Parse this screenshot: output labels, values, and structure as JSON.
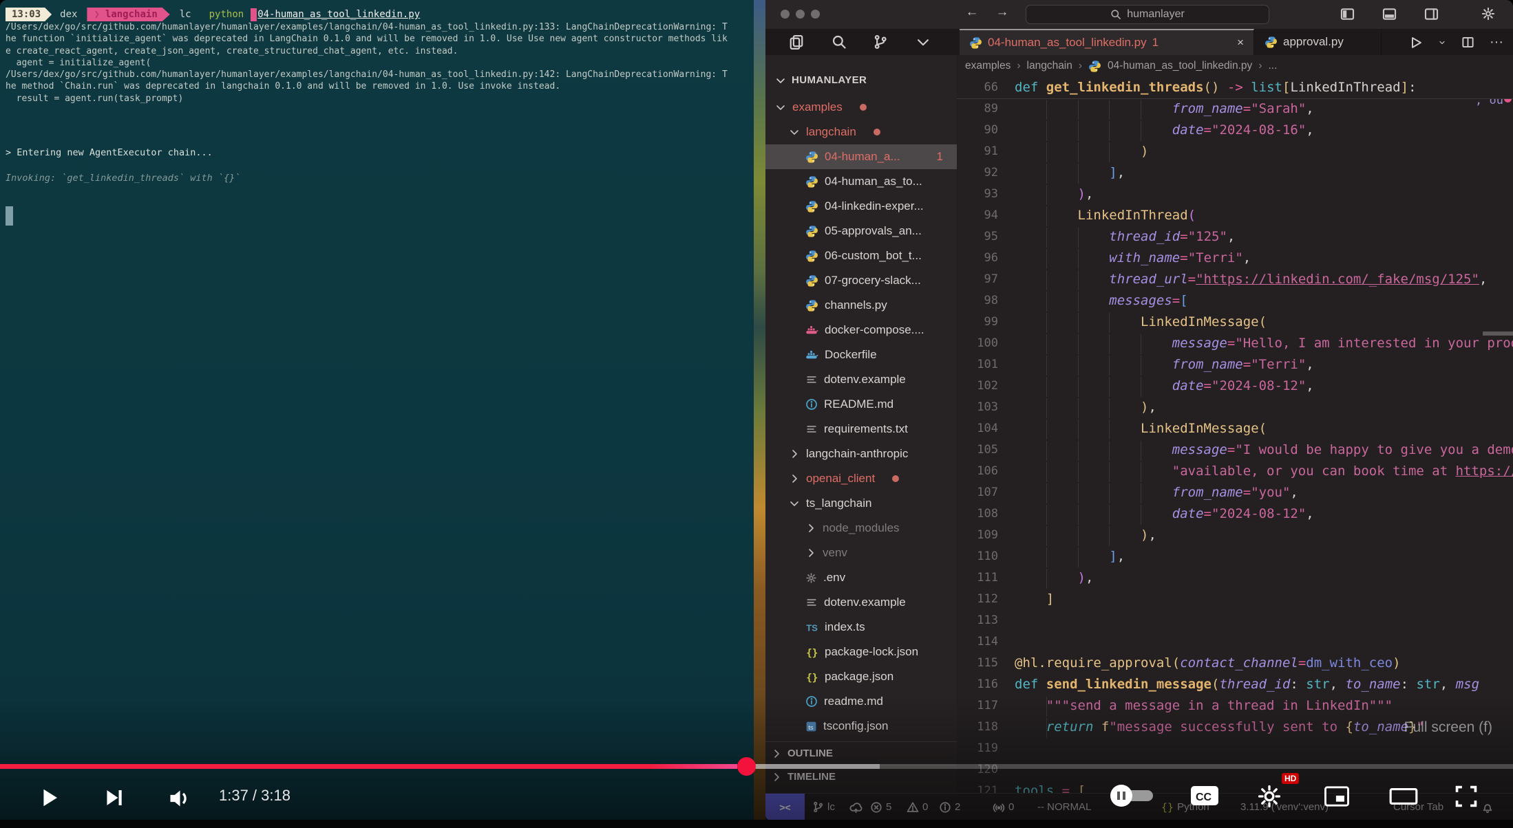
{
  "player": {
    "time_display": "1:37 / 3:18",
    "tooltip_label": "Full screen (f)",
    "progress_played_pct": 49.3,
    "progress_buffered_pct": 58.1,
    "accent_red": "#f2123c"
  },
  "terminal": {
    "prompt": {
      "time": "13:03",
      "user": "dex",
      "venv": "langchain",
      "venv_chevron": "❯",
      "dir": "lc",
      "command": "python",
      "file": "04-human_as_tool_linkedin.py"
    },
    "output_lines": [
      "/Users/dex/go/src/github.com/humanlayer/humanlayer/examples/langchain/04-human_as_tool_linkedin.py:133: LangChainDeprecationWarning: T",
      "he function `initialize_agent` was deprecated in LangChain 0.1.0 and will be removed in 1.0. Use Use new agent constructor methods lik",
      "e create_react_agent, create_json_agent, create_structured_chat_agent, etc. instead.",
      "  agent = initialize_agent(",
      "/Users/dex/go/src/github.com/humanlayer/humanlayer/examples/langchain/04-human_as_tool_linkedin.py:142: LangChainDeprecationWarning: T",
      "he method `Chain.run` was deprecated in langchain 0.1.0 and will be removed in 1.0. Use invoke instead.",
      "  result = agent.run(task_prompt)"
    ],
    "chain_line": "> Entering new AgentExecutor chain...",
    "invoke_line": "Invoking: `get_linkedin_threads` with `{}`"
  },
  "titlebar": {
    "search_value": "humanlayer",
    "back": "←",
    "forward": "→"
  },
  "tabs": [
    {
      "label": "04-human_as_tool_linkedin.py",
      "badge": "1",
      "modified": true,
      "active": true,
      "close": "×"
    },
    {
      "label": "approval.py",
      "active": false
    }
  ],
  "tab_actions": {
    "more": "···"
  },
  "breadcrumb": {
    "items": [
      "examples",
      "langchain",
      "04-human_as_tool_linkedin.py",
      "..."
    ],
    "separator": "›"
  },
  "explorer": {
    "title": "HUMANLAYER",
    "items": [
      {
        "label": "examples",
        "depth": 1,
        "chev": "down",
        "mod": true,
        "dot": true
      },
      {
        "label": "langchain",
        "depth": 2,
        "chev": "down",
        "mod": true,
        "dot": true
      },
      {
        "label": "04-human_a...",
        "depth": 3,
        "icon": "py",
        "mod": true,
        "badge": "1",
        "selected": true
      },
      {
        "label": "04-human_as_to...",
        "depth": 3,
        "icon": "py"
      },
      {
        "label": "04-linkedin-exper...",
        "depth": 3,
        "icon": "py"
      },
      {
        "label": "05-approvals_an...",
        "depth": 3,
        "icon": "py"
      },
      {
        "label": "06-custom_bot_t...",
        "depth": 3,
        "icon": "py"
      },
      {
        "label": "07-grocery-slack...",
        "depth": 3,
        "icon": "py"
      },
      {
        "label": "channels.py",
        "depth": 3,
        "icon": "py"
      },
      {
        "label": "docker-compose....",
        "depth": 3,
        "icon": "whale-pink"
      },
      {
        "label": "Dockerfile",
        "depth": 3,
        "icon": "whale-blue"
      },
      {
        "label": "dotenv.example",
        "depth": 3,
        "icon": "list"
      },
      {
        "label": "README.md",
        "depth": 3,
        "icon": "info"
      },
      {
        "label": "requirements.txt",
        "depth": 3,
        "icon": "list"
      },
      {
        "label": "langchain-anthropic",
        "depth": 2,
        "chev": "right"
      },
      {
        "label": "openai_client",
        "depth": 2,
        "chev": "right",
        "mod": true,
        "dot": true
      },
      {
        "label": "ts_langchain",
        "depth": 2,
        "chev": "down"
      },
      {
        "label": "node_modules",
        "depth": 3,
        "chev": "right",
        "dim": true
      },
      {
        "label": "venv",
        "depth": 3,
        "chev": "right",
        "dim": true
      },
      {
        "label": ".env",
        "depth": 3,
        "icon": "gear"
      },
      {
        "label": "dotenv.example",
        "depth": 3,
        "icon": "list"
      },
      {
        "label": "index.ts",
        "depth": 3,
        "icon": "ts"
      },
      {
        "label": "package-lock.json",
        "depth": 3,
        "icon": "braces"
      },
      {
        "label": "package.json",
        "depth": 3,
        "icon": "braces"
      },
      {
        "label": "readme.md",
        "depth": 3,
        "icon": "info"
      },
      {
        "label": "tsconfig.json",
        "depth": 3,
        "icon": "tsbox"
      }
    ],
    "outline_label": "OUTLINE",
    "timeline_label": "TIMELINE"
  },
  "editor": {
    "sticky_line": {
      "n": 66,
      "g": [],
      "t": [
        [
          "kw",
          "def "
        ],
        [
          "fn",
          "get_linkedin_threads"
        ],
        [
          "b1",
          "()"
        ],
        [
          "wh",
          " "
        ],
        [
          "op",
          "->"
        ],
        [
          "wh",
          " "
        ],
        [
          "kw",
          "list"
        ],
        [
          "b1",
          "["
        ],
        [
          "wh",
          "LinkedInThread"
        ],
        [
          "b1",
          "]"
        ],
        [
          "wh",
          ":"
        ]
      ]
    },
    "lines": [
      {
        "n": 89,
        "g": [
          4,
          8,
          12,
          16
        ],
        "t": [
          [
            "sp",
            "                    "
          ],
          [
            "fld",
            "from_name"
          ],
          [
            "op",
            "="
          ],
          [
            "s",
            "\"Sarah\""
          ],
          [
            "wh",
            ","
          ]
        ]
      },
      {
        "n": 90,
        "g": [
          4,
          8,
          12,
          16
        ],
        "t": [
          [
            "sp",
            "                    "
          ],
          [
            "fld",
            "date"
          ],
          [
            "op",
            "="
          ],
          [
            "s",
            "\"2024-08-16\""
          ],
          [
            "wh",
            ","
          ]
        ]
      },
      {
        "n": 91,
        "g": [
          4,
          8,
          12
        ],
        "t": [
          [
            "sp",
            "                "
          ],
          [
            "b1",
            ")"
          ]
        ]
      },
      {
        "n": 92,
        "g": [
          4,
          8
        ],
        "t": [
          [
            "sp",
            "            "
          ],
          [
            "b3",
            "]"
          ],
          [
            "wh",
            ","
          ]
        ]
      },
      {
        "n": 93,
        "g": [
          4
        ],
        "t": [
          [
            "sp",
            "        "
          ],
          [
            "b2",
            ")"
          ],
          [
            "wh",
            ","
          ]
        ]
      },
      {
        "n": 94,
        "g": [
          4
        ],
        "t": [
          [
            "sp",
            "        "
          ],
          [
            "cls",
            "LinkedInThread"
          ],
          [
            "b2",
            "("
          ]
        ]
      },
      {
        "n": 95,
        "g": [
          4,
          8
        ],
        "t": [
          [
            "sp",
            "            "
          ],
          [
            "fld",
            "thread_id"
          ],
          [
            "op",
            "="
          ],
          [
            "s",
            "\"125\""
          ],
          [
            "wh",
            ","
          ]
        ]
      },
      {
        "n": 96,
        "g": [
          4,
          8
        ],
        "t": [
          [
            "sp",
            "            "
          ],
          [
            "fld",
            "with_name"
          ],
          [
            "op",
            "="
          ],
          [
            "s",
            "\"Terri\""
          ],
          [
            "wh",
            ","
          ]
        ]
      },
      {
        "n": 97,
        "g": [
          4,
          8
        ],
        "t": [
          [
            "sp",
            "            "
          ],
          [
            "fld",
            "thread_url"
          ],
          [
            "op",
            "="
          ],
          [
            "su",
            "\"https://linkedin.com/_fake/msg/125\""
          ],
          [
            "wh",
            ","
          ]
        ]
      },
      {
        "n": 98,
        "g": [
          4,
          8
        ],
        "t": [
          [
            "sp",
            "            "
          ],
          [
            "fld",
            "messages"
          ],
          [
            "op",
            "="
          ],
          [
            "b3",
            "["
          ]
        ]
      },
      {
        "n": 99,
        "g": [
          4,
          8,
          12
        ],
        "t": [
          [
            "sp",
            "                "
          ],
          [
            "cls",
            "LinkedInMessage"
          ],
          [
            "b1",
            "("
          ]
        ]
      },
      {
        "n": 100,
        "g": [
          4,
          8,
          12,
          16
        ],
        "t": [
          [
            "sp",
            "                    "
          ],
          [
            "fld",
            "message"
          ],
          [
            "op",
            "="
          ],
          [
            "s",
            "\"Hello, I am interested in your prod"
          ]
        ]
      },
      {
        "n": 101,
        "g": [
          4,
          8,
          12,
          16
        ],
        "t": [
          [
            "sp",
            "                    "
          ],
          [
            "fld",
            "from_name"
          ],
          [
            "op",
            "="
          ],
          [
            "s",
            "\"Terri\""
          ],
          [
            "wh",
            ","
          ]
        ]
      },
      {
        "n": 102,
        "g": [
          4,
          8,
          12,
          16
        ],
        "t": [
          [
            "sp",
            "                    "
          ],
          [
            "fld",
            "date"
          ],
          [
            "op",
            "="
          ],
          [
            "s",
            "\"2024-08-12\""
          ],
          [
            "wh",
            ","
          ]
        ]
      },
      {
        "n": 103,
        "g": [
          4,
          8,
          12
        ],
        "t": [
          [
            "sp",
            "                "
          ],
          [
            "b1",
            ")"
          ],
          [
            "wh",
            ","
          ]
        ]
      },
      {
        "n": 104,
        "g": [
          4,
          8,
          12
        ],
        "t": [
          [
            "sp",
            "                "
          ],
          [
            "cls",
            "LinkedInMessage"
          ],
          [
            "b1",
            "("
          ]
        ]
      },
      {
        "n": 105,
        "g": [
          4,
          8,
          12,
          16
        ],
        "t": [
          [
            "sp",
            "                    "
          ],
          [
            "fld",
            "message"
          ],
          [
            "op",
            "="
          ],
          [
            "s",
            "\"I would be happy to give you a demo"
          ]
        ]
      },
      {
        "n": 106,
        "g": [
          4,
          8,
          12,
          16
        ],
        "t": [
          [
            "sp",
            "                    "
          ],
          [
            "s",
            "\"available, or you can book time at "
          ],
          [
            "su",
            "https://cal"
          ]
        ]
      },
      {
        "n": 107,
        "g": [
          4,
          8,
          12,
          16
        ],
        "t": [
          [
            "sp",
            "                    "
          ],
          [
            "fld",
            "from_name"
          ],
          [
            "op",
            "="
          ],
          [
            "s",
            "\"you\""
          ],
          [
            "wh",
            ","
          ]
        ]
      },
      {
        "n": 108,
        "g": [
          4,
          8,
          12,
          16
        ],
        "t": [
          [
            "sp",
            "                    "
          ],
          [
            "fld",
            "date"
          ],
          [
            "op",
            "="
          ],
          [
            "s",
            "\"2024-08-12\""
          ],
          [
            "wh",
            ","
          ]
        ]
      },
      {
        "n": 109,
        "g": [
          4,
          8,
          12
        ],
        "t": [
          [
            "sp",
            "                "
          ],
          [
            "b1",
            ")"
          ],
          [
            "wh",
            ","
          ]
        ]
      },
      {
        "n": 110,
        "g": [
          4,
          8
        ],
        "t": [
          [
            "sp",
            "            "
          ],
          [
            "b3",
            "]"
          ],
          [
            "wh",
            ","
          ]
        ]
      },
      {
        "n": 111,
        "g": [
          4
        ],
        "t": [
          [
            "sp",
            "        "
          ],
          [
            "b2",
            ")"
          ],
          [
            "wh",
            ","
          ]
        ]
      },
      {
        "n": 112,
        "g": [],
        "t": [
          [
            "sp",
            "    "
          ],
          [
            "b1",
            "]"
          ]
        ]
      },
      {
        "n": 113,
        "g": [],
        "t": []
      },
      {
        "n": 114,
        "g": [],
        "t": []
      },
      {
        "n": 115,
        "g": [],
        "t": [
          [
            "dec",
            "@hl.require_approval"
          ],
          [
            "b1",
            "("
          ],
          [
            "fld",
            "contact_channel"
          ],
          [
            "op",
            "="
          ],
          [
            "var",
            "dm_with_ceo"
          ],
          [
            "b1",
            ")"
          ]
        ]
      },
      {
        "n": 116,
        "g": [],
        "t": [
          [
            "kw",
            "def "
          ],
          [
            "fn",
            "send_linkedin_message"
          ],
          [
            "b1",
            "("
          ],
          [
            "fld",
            "thread_id"
          ],
          [
            "wh",
            ": "
          ],
          [
            "kw",
            "str"
          ],
          [
            "wh",
            ", "
          ],
          [
            "fld",
            "to_name"
          ],
          [
            "wh",
            ": "
          ],
          [
            "kw",
            "str"
          ],
          [
            "wh",
            ", "
          ],
          [
            "fld",
            "msg"
          ]
        ]
      },
      {
        "n": 117,
        "g": [
          4
        ],
        "t": [
          [
            "sp",
            "    "
          ],
          [
            "s",
            "\"\"\"send a message in a thread in LinkedIn\"\"\""
          ]
        ]
      },
      {
        "n": 118,
        "g": [
          4
        ],
        "t": [
          [
            "sp",
            "    "
          ],
          [
            "kwi",
            "return"
          ],
          [
            "wh",
            " "
          ],
          [
            "cls",
            "f"
          ],
          [
            "s",
            "\"message successfully sent to "
          ],
          [
            "b1",
            "{"
          ],
          [
            "fld",
            "to_name"
          ],
          [
            "b1",
            "}"
          ],
          [
            "s",
            "\""
          ]
        ]
      },
      {
        "n": 119,
        "g": [],
        "t": []
      },
      {
        "n": 120,
        "g": [],
        "t": []
      },
      {
        "n": 121,
        "g": [],
        "t": [
          [
            "cy",
            "tools"
          ],
          [
            "wh",
            " "
          ],
          [
            "op",
            "="
          ],
          [
            "wh",
            " "
          ],
          [
            "b1",
            "["
          ]
        ]
      }
    ],
    "overflow_fragment": ", ou"
  },
  "statusbar": {
    "remote": "><",
    "branch": "lc",
    "errors": "5",
    "warnings": "0",
    "infos": "2",
    "ports": "0",
    "mode": "-- NORMAL",
    "lang": "Python",
    "lang_braces": "{}",
    "interpreter": "3.11.9 ('venv':venv)",
    "cursor_tab": "Cursor Tab"
  },
  "yt": {
    "cc": "CC",
    "hd": "HD"
  }
}
